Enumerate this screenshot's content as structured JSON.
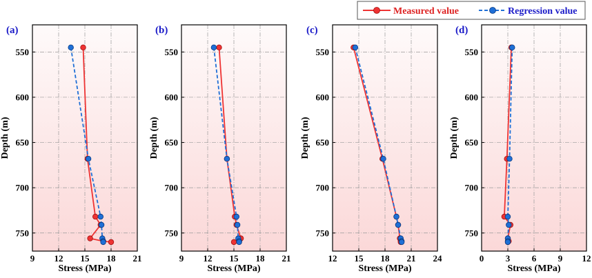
{
  "legend": {
    "measured_label": "Measured value",
    "regression_label": "Regression value"
  },
  "colors": {
    "measured": "#ee3333",
    "regression": "#1f6fd6",
    "panel_label": "#1a1ac8",
    "bg_top": "#fefafa",
    "bg_bottom": "#fbd8d8"
  },
  "chart_data": [
    {
      "type": "line",
      "panel_label": "(a)",
      "xlabel": "Stress (MPa)",
      "ylabel": "Depth (m)",
      "xlim": [
        9,
        21
      ],
      "xticks": [
        9,
        12,
        15,
        18,
        21
      ],
      "ylim": [
        520,
        770
      ],
      "yticks": [
        550,
        600,
        650,
        700,
        750
      ],
      "y_inverted": true,
      "grid": true,
      "series": [
        {
          "name": "Measured value",
          "style": "solid",
          "x": [
            14.8,
            15.3,
            16.2,
            16.8,
            15.6,
            17.1,
            18.0
          ],
          "y": [
            545,
            668,
            732,
            741,
            756,
            759,
            760
          ]
        },
        {
          "name": "Regression value",
          "style": "dashed",
          "x": [
            13.4,
            15.4,
            16.8,
            16.9,
            17.0,
            17.1,
            17.1
          ],
          "y": [
            545,
            668,
            732,
            741,
            756,
            759,
            760
          ]
        }
      ]
    },
    {
      "type": "line",
      "panel_label": "(b)",
      "xlabel": "Stress (MPa)",
      "ylabel": "Depth (m)",
      "xlim": [
        9,
        21
      ],
      "xticks": [
        9,
        12,
        15,
        18,
        21
      ],
      "ylim": [
        520,
        770
      ],
      "yticks": [
        550,
        600,
        650,
        700,
        750
      ],
      "y_inverted": true,
      "grid": true,
      "series": [
        {
          "name": "Measured value",
          "style": "solid",
          "x": [
            13.3,
            14.2,
            15.1,
            15.3,
            15.8,
            15.6,
            15.0
          ],
          "y": [
            545,
            668,
            732,
            741,
            756,
            759,
            760
          ]
        },
        {
          "name": "Regression value",
          "style": "dashed",
          "x": [
            12.7,
            14.2,
            15.3,
            15.4,
            15.5,
            15.6,
            15.6
          ],
          "y": [
            545,
            668,
            732,
            741,
            756,
            759,
            760
          ]
        }
      ]
    },
    {
      "type": "line",
      "panel_label": "(c)",
      "xlabel": "Stress (MPa)",
      "ylabel": "Depth (m)",
      "xlim": [
        12,
        24
      ],
      "xticks": [
        12,
        15,
        18,
        21,
        24
      ],
      "ylim": [
        520,
        770
      ],
      "yticks": [
        550,
        600,
        650,
        700,
        750
      ],
      "y_inverted": true,
      "grid": true,
      "series": [
        {
          "name": "Measured value",
          "style": "solid",
          "x": [
            14.4,
            17.7,
            19.3,
            19.5,
            19.7,
            19.8,
            19.8
          ],
          "y": [
            545,
            668,
            732,
            741,
            756,
            759,
            760
          ]
        },
        {
          "name": "Regression value",
          "style": "dashed",
          "x": [
            14.6,
            17.8,
            19.3,
            19.5,
            19.8,
            19.9,
            19.9
          ],
          "y": [
            545,
            668,
            732,
            741,
            756,
            759,
            760
          ]
        }
      ]
    },
    {
      "type": "line",
      "panel_label": "(d)",
      "xlabel": "Stress (MPa)",
      "ylabel": "Depth (m)",
      "xlim": [
        0,
        12
      ],
      "xticks": [
        0,
        3,
        6,
        9,
        12
      ],
      "ylim": [
        520,
        770
      ],
      "yticks": [
        550,
        600,
        650,
        700,
        750
      ],
      "y_inverted": true,
      "grid": true,
      "series": [
        {
          "name": "Measured value",
          "style": "solid",
          "x": [
            3.4,
            2.9,
            2.6,
            3.3,
            3.0,
            3.1,
            3.0
          ],
          "y": [
            545,
            668,
            732,
            741,
            756,
            759,
            760
          ]
        },
        {
          "name": "Regression value",
          "style": "dashed",
          "x": [
            3.5,
            3.2,
            3.0,
            3.1,
            3.0,
            3.0,
            3.0
          ],
          "y": [
            545,
            668,
            732,
            741,
            756,
            759,
            760
          ]
        }
      ]
    }
  ]
}
